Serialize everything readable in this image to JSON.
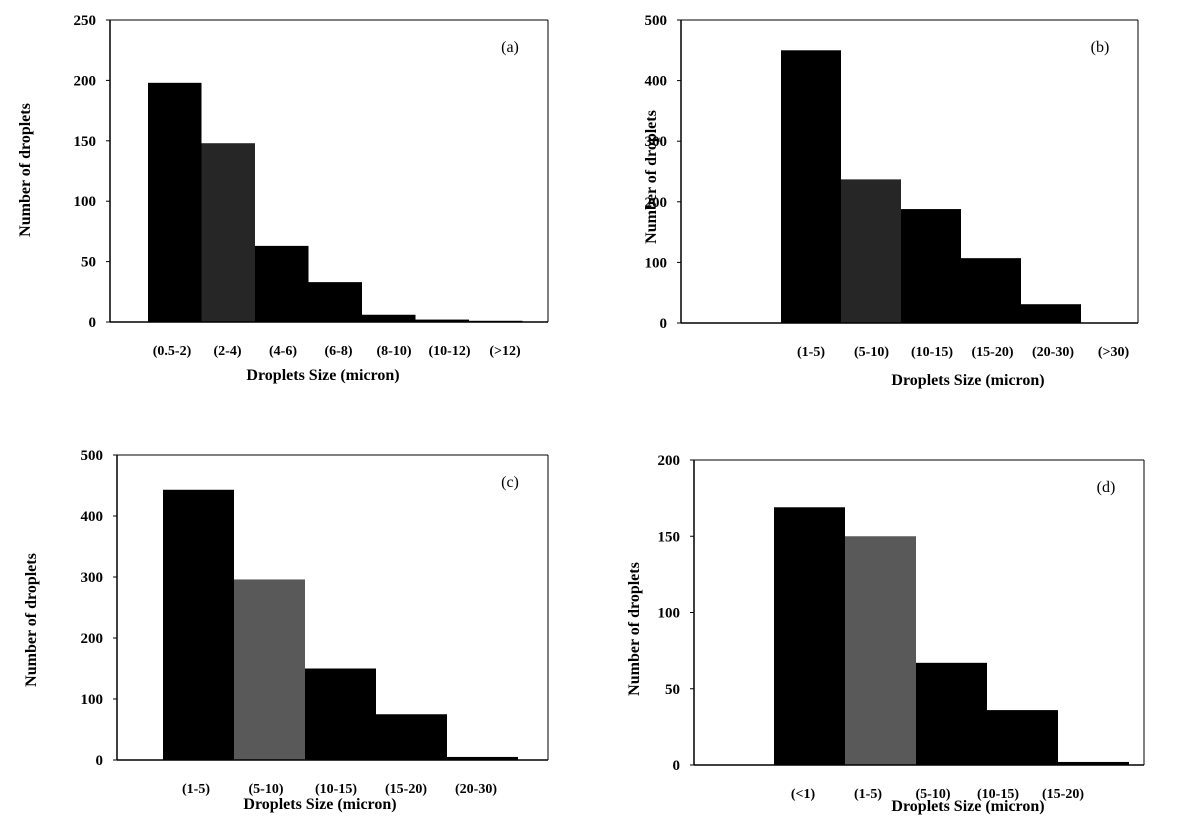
{
  "chart_data": [
    {
      "type": "bar",
      "panel_label": "(a)",
      "title": "",
      "xlabel": "Droplets Size (micron)",
      "ylabel": "Number of droplets",
      "ylim": [
        0,
        250
      ],
      "yticks": [
        0,
        50,
        100,
        150,
        200,
        250
      ],
      "categories": [
        "(0.5-2)",
        "(2-4)",
        "(4-6)",
        "(6-8)",
        "(8-10)",
        "(10-12)",
        "(>12)"
      ],
      "values": [
        198,
        148,
        63,
        33,
        6,
        2,
        1
      ],
      "colors": [
        "#000000",
        "#262626",
        "#000000",
        "#000000",
        "#000000",
        "#000000",
        "#000000"
      ],
      "grid": false,
      "legend": "none"
    },
    {
      "type": "bar",
      "panel_label": "(b)",
      "title": "",
      "xlabel": "Droplets Size (micron)",
      "ylabel": "Number of droplets",
      "ylim": [
        0,
        500
      ],
      "yticks": [
        0,
        100,
        200,
        300,
        400,
        500
      ],
      "categories": [
        "(1-5)",
        "(5-10)",
        "(10-15)",
        "(15-20)",
        "(20-30)",
        "(>30)"
      ],
      "values": [
        450,
        237,
        188,
        107,
        31,
        0
      ],
      "colors": [
        "#000000",
        "#262626",
        "#000000",
        "#000000",
        "#000000",
        "#000000"
      ],
      "grid": false,
      "legend": "none"
    },
    {
      "type": "bar",
      "panel_label": "(c)",
      "title": "",
      "xlabel": "Droplets Size (micron)",
      "ylabel": "Number of droplets",
      "ylim": [
        0,
        500
      ],
      "yticks": [
        0,
        100,
        200,
        300,
        400,
        500
      ],
      "categories": [
        "(1-5)",
        "(5-10)",
        "(10-15)",
        "(15-20)",
        "(20-30)"
      ],
      "values": [
        443,
        296,
        150,
        75,
        5
      ],
      "colors": [
        "#000000",
        "#595959",
        "#000000",
        "#000000",
        "#000000"
      ],
      "grid": false,
      "legend": "none"
    },
    {
      "type": "bar",
      "panel_label": "(d)",
      "title": "",
      "xlabel": "Droplets Size (micron)",
      "ylabel": "Number of droplets",
      "ylim": [
        0,
        200
      ],
      "yticks": [
        0,
        50,
        100,
        150,
        200
      ],
      "categories": [
        "(<1)",
        "(1-5)",
        "(5-10)",
        "(10-15)",
        "(15-20)"
      ],
      "values": [
        169,
        150,
        67,
        36,
        2
      ],
      "colors": [
        "#000000",
        "#595959",
        "#000000",
        "#000000",
        "#000000"
      ],
      "grid": false,
      "legend": "none"
    }
  ]
}
